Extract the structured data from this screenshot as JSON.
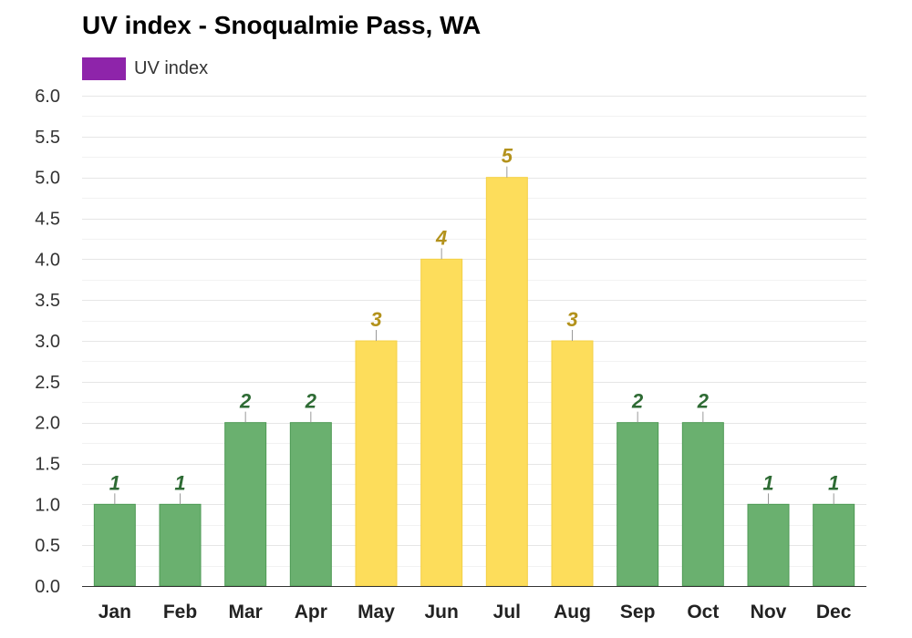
{
  "chart_data": {
    "type": "bar",
    "title": "UV index - Snoqualmie Pass, WA",
    "xlabel": "",
    "ylabel": "",
    "categories": [
      "Jan",
      "Feb",
      "Mar",
      "Apr",
      "May",
      "Jun",
      "Jul",
      "Aug",
      "Sep",
      "Oct",
      "Nov",
      "Dec"
    ],
    "series": [
      {
        "name": "UV index",
        "values": [
          1,
          1,
          2,
          2,
          3,
          4,
          5,
          3,
          2,
          2,
          1,
          1
        ],
        "data_labels": [
          "1",
          "1",
          "2",
          "2",
          "3",
          "4",
          "5",
          "3",
          "2",
          "2",
          "1",
          "1"
        ]
      }
    ],
    "ylim": [
      0,
      6
    ],
    "yticks": [
      "0.0",
      "0.5",
      "1.0",
      "1.5",
      "2.0",
      "2.5",
      "3.0",
      "3.5",
      "4.0",
      "4.5",
      "5.0",
      "5.5",
      "6.0"
    ],
    "grid": true,
    "legend_position": "top-left",
    "colors": {
      "legend": "#8e24aa",
      "low_bar": "#6ab06f",
      "low_border": "#4e9a55",
      "low_label": "#2e6b34",
      "moderate_bar": "#fddd5b",
      "moderate_border": "#f4d046",
      "moderate_label": "#b3921c",
      "grid": "#e6e6e6",
      "axis": "#333333"
    }
  }
}
